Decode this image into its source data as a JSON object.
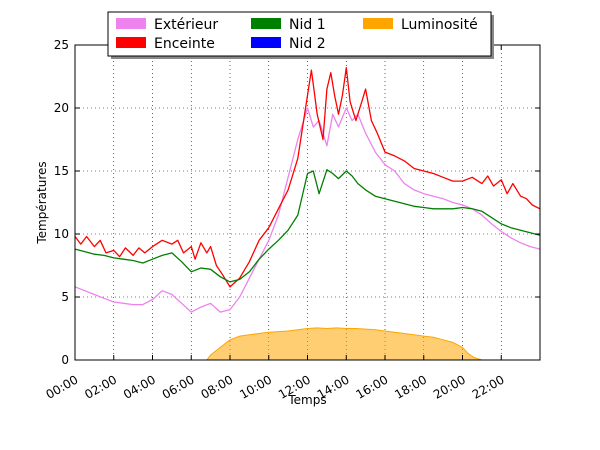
{
  "chart_data": {
    "type": "line",
    "xlabel": "Temps",
    "ylabel": "Températures",
    "ylim": [
      0,
      25
    ],
    "xlim": [
      0,
      24
    ],
    "yticks": [
      0,
      5,
      10,
      15,
      20,
      25
    ],
    "ytick_labels": [
      "0",
      "5",
      "10",
      "15",
      "20",
      "25"
    ],
    "xticks": [
      0,
      2,
      4,
      6,
      8,
      10,
      12,
      14,
      16,
      18,
      20,
      22
    ],
    "xtick_labels": [
      "00:00",
      "02:00",
      "04:00",
      "06:00",
      "08:00",
      "10:00",
      "12:00",
      "14:00",
      "16:00",
      "18:00",
      "20:00",
      "22:00"
    ],
    "grid": true,
    "legend_position": "top",
    "series": [
      {
        "name": "Extérieur",
        "color": "#EE82EE",
        "kind": "line",
        "x": [
          0,
          0.5,
          1,
          1.5,
          2,
          2.5,
          3,
          3.5,
          4,
          4.5,
          5,
          5.5,
          6,
          6.5,
          7,
          7.5,
          8,
          8.5,
          9,
          9.5,
          10,
          10.5,
          11,
          11.5,
          12,
          12.3,
          12.6,
          13,
          13.3,
          13.6,
          14,
          14.3,
          14.6,
          15,
          15.5,
          16,
          16.5,
          17,
          17.5,
          18,
          18.5,
          19,
          19.5,
          20,
          20.5,
          21,
          21.5,
          22,
          22.5,
          23,
          23.5,
          24
        ],
        "y": [
          5.8,
          5.5,
          5.2,
          4.9,
          4.6,
          4.5,
          4.4,
          4.4,
          4.8,
          5.5,
          5.2,
          4.5,
          3.8,
          4.2,
          4.5,
          3.8,
          4.0,
          5.0,
          6.5,
          8.0,
          9.5,
          11.5,
          14.5,
          17.5,
          20.0,
          18.5,
          19.0,
          17.0,
          19.5,
          18.5,
          20.0,
          19.0,
          19.5,
          18.0,
          16.5,
          15.5,
          15.0,
          14.0,
          13.5,
          13.2,
          13.0,
          12.8,
          12.5,
          12.3,
          12.0,
          11.5,
          10.8,
          10.2,
          9.7,
          9.3,
          9.0,
          8.8
        ]
      },
      {
        "name": "Enceinte",
        "color": "#FF0000",
        "kind": "line",
        "x": [
          0,
          0.3,
          0.6,
          1,
          1.3,
          1.6,
          2,
          2.3,
          2.6,
          3,
          3.3,
          3.6,
          4,
          4.5,
          5,
          5.3,
          5.6,
          6,
          6.2,
          6.5,
          6.8,
          7,
          7.3,
          7.6,
          8,
          8.5,
          9,
          9.5,
          10,
          10.5,
          11,
          11.5,
          12,
          12.2,
          12.5,
          12.8,
          13,
          13.2,
          13.4,
          13.6,
          13.8,
          14,
          14.2,
          14.5,
          14.8,
          15,
          15.3,
          15.6,
          16,
          16.5,
          17,
          17.5,
          18,
          18.5,
          19,
          19.5,
          20,
          20.5,
          21,
          21.3,
          21.6,
          22,
          22.3,
          22.6,
          23,
          23.3,
          23.6,
          24
        ],
        "y": [
          9.8,
          9.2,
          9.8,
          9.0,
          9.5,
          8.5,
          8.7,
          8.2,
          8.9,
          8.3,
          8.9,
          8.5,
          9.0,
          9.5,
          9.2,
          9.5,
          8.5,
          9.0,
          8.0,
          9.3,
          8.5,
          9.0,
          7.5,
          6.8,
          5.8,
          6.5,
          7.8,
          9.5,
          10.5,
          12.0,
          13.5,
          16.0,
          21.0,
          23.0,
          19.5,
          17.5,
          21.5,
          22.8,
          21.0,
          19.5,
          21.0,
          23.2,
          20.5,
          19.0,
          20.5,
          21.5,
          19.0,
          18.0,
          16.5,
          16.2,
          15.8,
          15.2,
          15.0,
          14.8,
          14.5,
          14.2,
          14.2,
          14.5,
          14.0,
          14.6,
          13.8,
          14.3,
          13.2,
          14.0,
          13.0,
          12.8,
          12.3,
          12.0
        ]
      },
      {
        "name": "Nid 1",
        "color": "#008000",
        "kind": "line",
        "x": [
          0,
          0.5,
          1,
          1.5,
          2,
          2.5,
          3,
          3.5,
          4,
          4.5,
          5,
          5.5,
          6,
          6.5,
          7,
          7.5,
          8,
          8.5,
          9,
          9.5,
          10,
          10.5,
          11,
          11.5,
          12,
          12.3,
          12.6,
          13,
          13.3,
          13.6,
          14,
          14.3,
          14.6,
          15,
          15.5,
          16,
          16.5,
          17,
          17.5,
          18,
          18.5,
          19,
          19.5,
          20,
          20.5,
          21,
          21.5,
          22,
          22.5,
          23,
          23.5,
          24
        ],
        "y": [
          8.8,
          8.6,
          8.4,
          8.3,
          8.1,
          8.0,
          7.9,
          7.7,
          8.0,
          8.3,
          8.5,
          7.8,
          7.0,
          7.3,
          7.2,
          6.6,
          6.2,
          6.4,
          7.0,
          8.0,
          8.8,
          9.5,
          10.3,
          11.5,
          14.8,
          15.0,
          13.2,
          15.1,
          14.8,
          14.4,
          15.0,
          14.6,
          14.0,
          13.5,
          13.0,
          12.8,
          12.6,
          12.4,
          12.2,
          12.1,
          12.0,
          12.0,
          12.0,
          12.1,
          12.0,
          11.8,
          11.3,
          10.8,
          10.5,
          10.3,
          10.1,
          9.9
        ]
      },
      {
        "name": "Nid 2",
        "color": "#0000FF",
        "kind": "line",
        "x": [],
        "y": []
      },
      {
        "name": "Luminosité",
        "color": "#FFA500",
        "kind": "area",
        "x": [
          6.8,
          7,
          7.5,
          8,
          8.5,
          9,
          9.5,
          10,
          10.5,
          11,
          11.5,
          12,
          12.5,
          13,
          13.5,
          14,
          14.5,
          15,
          15.5,
          16,
          16.5,
          17,
          17.5,
          18,
          18.5,
          19,
          19.5,
          20,
          20.3,
          20.6,
          21
        ],
        "y": [
          0,
          0.4,
          1.0,
          1.6,
          1.9,
          2.0,
          2.1,
          2.2,
          2.25,
          2.3,
          2.4,
          2.5,
          2.55,
          2.5,
          2.55,
          2.5,
          2.5,
          2.45,
          2.4,
          2.3,
          2.2,
          2.1,
          2.0,
          1.9,
          1.8,
          1.6,
          1.4,
          1.0,
          0.5,
          0.2,
          0
        ]
      }
    ]
  }
}
